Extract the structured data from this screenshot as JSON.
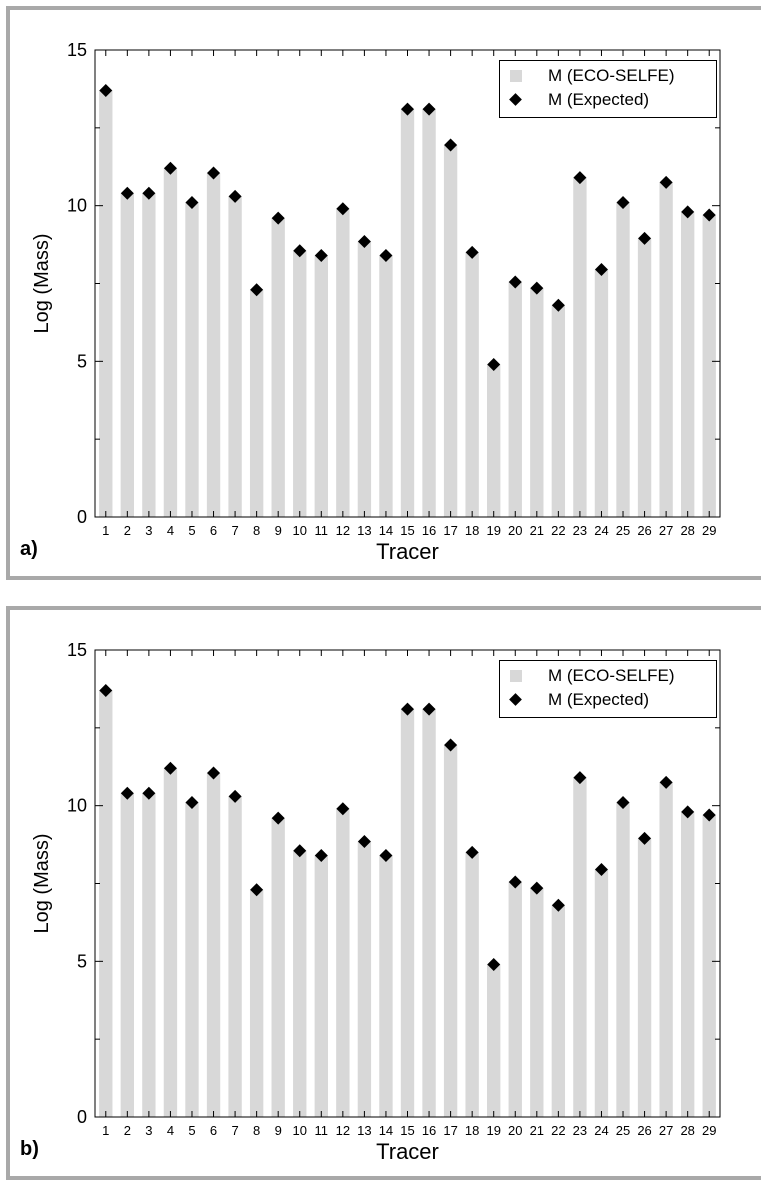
{
  "chart_data": [
    {
      "type": "bar",
      "panel_label": "a)",
      "xlabel": "Tracer",
      "ylabel": "Log (Mass)",
      "ylim": [
        0,
        15
      ],
      "yticks": [
        "0",
        "5",
        "10",
        "15"
      ],
      "categories": [
        "1",
        "2",
        "3",
        "4",
        "5",
        "6",
        "7",
        "8",
        "9",
        "10",
        "11",
        "12",
        "13",
        "14",
        "15",
        "16",
        "17",
        "18",
        "19",
        "20",
        "21",
        "22",
        "23",
        "24",
        "25",
        "26",
        "27",
        "28",
        "29"
      ],
      "legend_position": "top-right",
      "series": [
        {
          "name": "M (ECO-SELFE)",
          "kind": "bar",
          "color": "#d8d8d8",
          "values": [
            13.7,
            10.4,
            10.4,
            11.2,
            10.1,
            11.05,
            10.3,
            7.3,
            9.6,
            8.55,
            8.4,
            9.9,
            8.85,
            8.4,
            13.1,
            13.1,
            11.95,
            8.5,
            4.9,
            7.55,
            7.35,
            6.8,
            10.9,
            7.95,
            10.1,
            8.95,
            10.75,
            9.8,
            9.7
          ]
        },
        {
          "name": "M (Expected)",
          "kind": "marker",
          "color": "#000000",
          "values": [
            13.7,
            10.4,
            10.4,
            11.2,
            10.1,
            11.05,
            10.3,
            7.3,
            9.6,
            8.55,
            8.4,
            9.9,
            8.85,
            8.4,
            13.1,
            13.1,
            11.95,
            8.5,
            4.9,
            7.55,
            7.35,
            6.8,
            10.9,
            7.95,
            10.1,
            8.95,
            10.75,
            9.8,
            9.7
          ]
        }
      ]
    },
    {
      "type": "bar",
      "panel_label": "b)",
      "xlabel": "Tracer",
      "ylabel": "Log (Mass)",
      "ylim": [
        0,
        15
      ],
      "yticks": [
        "0",
        "5",
        "10",
        "15"
      ],
      "categories": [
        "1",
        "2",
        "3",
        "4",
        "5",
        "6",
        "7",
        "8",
        "9",
        "10",
        "11",
        "12",
        "13",
        "14",
        "15",
        "16",
        "17",
        "18",
        "19",
        "20",
        "21",
        "22",
        "23",
        "24",
        "25",
        "26",
        "27",
        "28",
        "29"
      ],
      "legend_position": "top-right",
      "series": [
        {
          "name": "M (ECO-SELFE)",
          "kind": "bar",
          "color": "#d8d8d8",
          "values": [
            13.7,
            10.4,
            10.4,
            11.2,
            10.1,
            11.05,
            10.3,
            7.3,
            9.6,
            8.55,
            8.4,
            9.9,
            8.85,
            8.4,
            13.1,
            13.1,
            11.95,
            8.5,
            4.9,
            7.55,
            7.35,
            6.8,
            10.9,
            7.95,
            10.1,
            8.95,
            10.75,
            9.8,
            9.7
          ]
        },
        {
          "name": "M (Expected)",
          "kind": "marker",
          "color": "#000000",
          "values": [
            13.7,
            10.4,
            10.4,
            11.2,
            10.1,
            11.05,
            10.3,
            7.3,
            9.6,
            8.55,
            8.4,
            9.9,
            8.85,
            8.4,
            13.1,
            13.1,
            11.95,
            8.5,
            4.9,
            7.55,
            7.35,
            6.8,
            10.9,
            7.95,
            10.1,
            8.95,
            10.75,
            9.8,
            9.7
          ]
        }
      ]
    }
  ]
}
